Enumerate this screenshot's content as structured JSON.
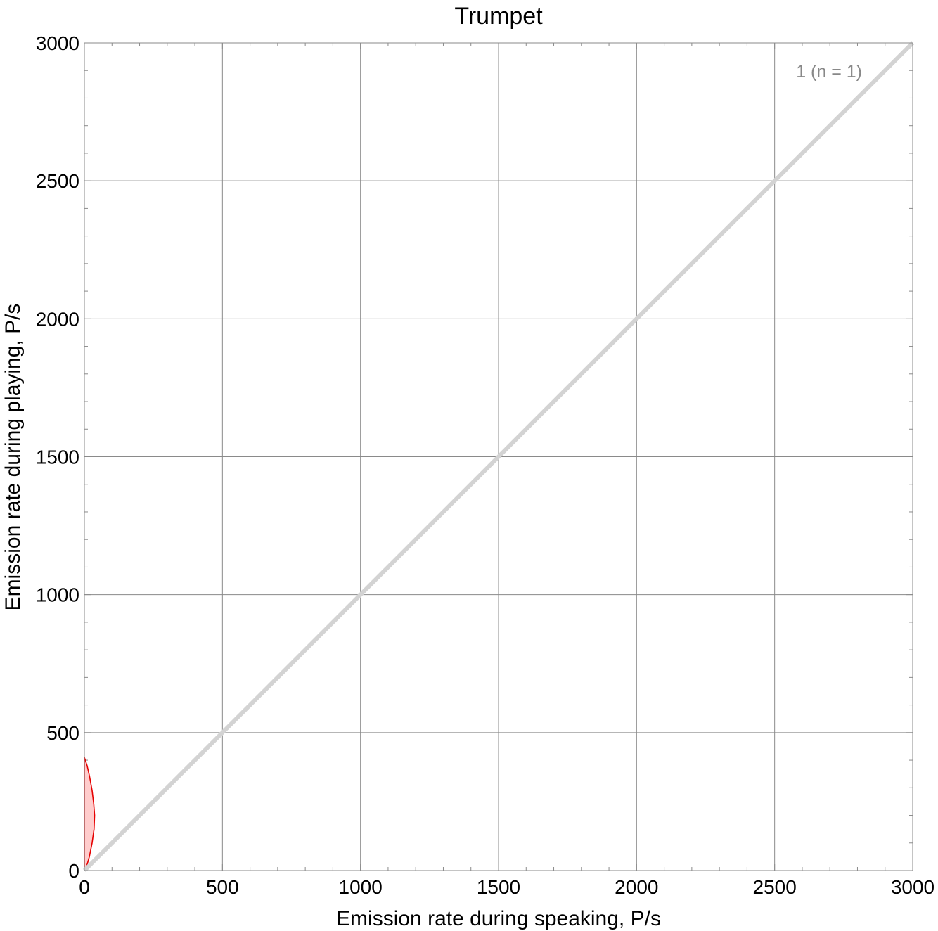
{
  "chart_data": {
    "type": "line",
    "title": "Trumpet",
    "xlabel": "Emission rate during speaking,  P/s",
    "ylabel": "Emission rate during playing,  P/s",
    "xlim": [
      0,
      3000
    ],
    "ylim": [
      0,
      3000
    ],
    "xticks": [
      0,
      500,
      1000,
      1500,
      2000,
      2500,
      3000
    ],
    "yticks": [
      0,
      500,
      1000,
      1500,
      2000,
      2500,
      3000
    ],
    "x_tick_labels": [
      "0",
      "500",
      "1000",
      "1500",
      "2000",
      "2500",
      "3000"
    ],
    "y_tick_labels": [
      "0",
      "500",
      "1000",
      "1500",
      "2000",
      "2500",
      "3000"
    ],
    "grid": true,
    "reference_line": {
      "x": [
        0,
        3000
      ],
      "y": [
        0,
        3000
      ],
      "color": "#d3d3d3"
    },
    "region": {
      "color": "#e60000",
      "fill": "#ffcccc",
      "boundary": [
        {
          "x": 0,
          "y": 410
        },
        {
          "x": 10,
          "y": 380
        },
        {
          "x": 19,
          "y": 340
        },
        {
          "x": 28,
          "y": 290
        },
        {
          "x": 34,
          "y": 240
        },
        {
          "x": 37,
          "y": 200
        },
        {
          "x": 35,
          "y": 150
        },
        {
          "x": 28,
          "y": 100
        },
        {
          "x": 18,
          "y": 50
        },
        {
          "x": 8,
          "y": 15
        },
        {
          "x": 0,
          "y": 0
        }
      ]
    },
    "annotation": "1  (n = 1)"
  },
  "colors": {
    "grid": "#8a8a8a",
    "frame": "#8a8a8a",
    "diagonal": "#d3d3d3",
    "region_stroke": "#e60000",
    "region_fill": "#ffcccc",
    "annotation": "#888888"
  }
}
